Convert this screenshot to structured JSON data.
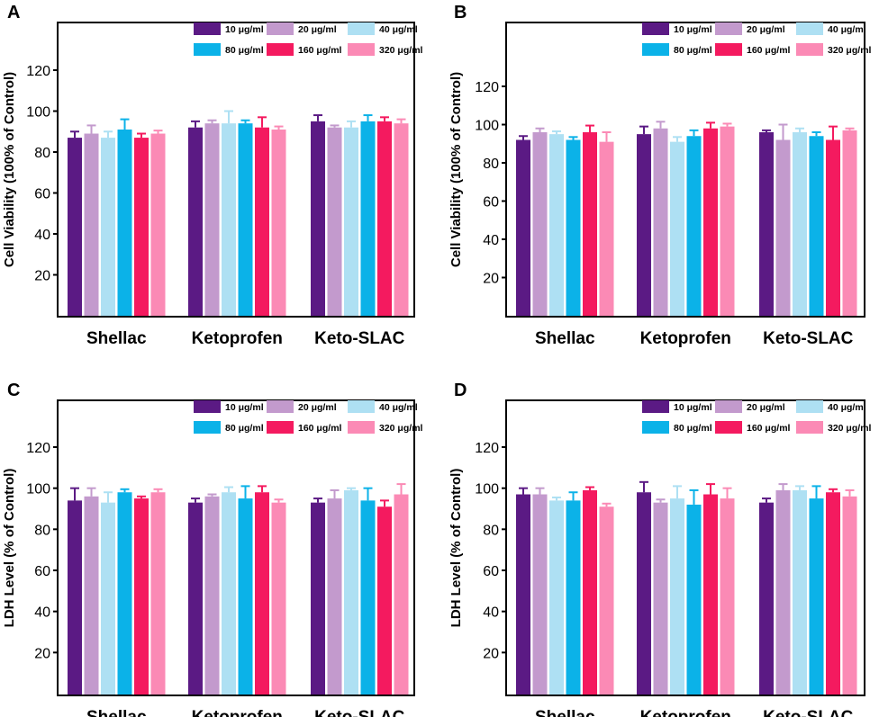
{
  "figure": {
    "legend_items": [
      {
        "label": "10 μg/ml",
        "color": "#5b1a84"
      },
      {
        "label": "20 μg/ml",
        "color": "#c39acd"
      },
      {
        "label": "40 μg/ml",
        "color": "#aee0f3"
      },
      {
        "label": "80 μg/ml",
        "color": "#0bb2e8"
      },
      {
        "label": "160 μg/ml",
        "color": "#f41a5f"
      },
      {
        "label": "320 μg/ml",
        "color": "#fb8ab5"
      }
    ]
  },
  "chart_data": [
    {
      "panel": "A",
      "type": "bar",
      "ylabel": "Cell Viability (100% of Control)",
      "ylim": [
        0,
        140
      ],
      "yticks": [
        20,
        40,
        60,
        80,
        100,
        120
      ],
      "categories": [
        "Shellac",
        "Ketoprofen",
        "Keto-SLAC"
      ],
      "series": [
        {
          "name": "10 μg/ml",
          "values": [
            87,
            92,
            95
          ],
          "errors": [
            3,
            3,
            3
          ]
        },
        {
          "name": "20 μg/ml",
          "values": [
            89,
            94,
            92
          ],
          "errors": [
            4,
            1.5,
            1
          ]
        },
        {
          "name": "40 μg/ml",
          "values": [
            87,
            94,
            92
          ],
          "errors": [
            3,
            6,
            3
          ]
        },
        {
          "name": "80 μg/ml",
          "values": [
            91,
            94,
            95
          ],
          "errors": [
            5,
            1.5,
            3
          ]
        },
        {
          "name": "160 μg/ml",
          "values": [
            87,
            92,
            95
          ],
          "errors": [
            2,
            5,
            2
          ]
        },
        {
          "name": "320 μg/ml",
          "values": [
            89,
            91,
            94
          ],
          "errors": [
            1.5,
            1.5,
            2
          ]
        }
      ]
    },
    {
      "panel": "B",
      "type": "bar",
      "ylabel": "Cell Viability (100% of Control)",
      "ylim": [
        0,
        140
      ],
      "yticks": [
        20,
        40,
        60,
        80,
        100,
        120
      ],
      "categories": [
        "Shellac",
        "Ketoprofen",
        "Keto-SLAC"
      ],
      "series": [
        {
          "name": "10 μg/ml",
          "values": [
            92,
            95,
            96
          ],
          "errors": [
            2,
            4,
            1
          ]
        },
        {
          "name": "20 μg/ml",
          "values": [
            96,
            98,
            92
          ],
          "errors": [
            2,
            3.5,
            8
          ]
        },
        {
          "name": "40 μg/ml",
          "values": [
            95,
            91,
            96
          ],
          "errors": [
            1.5,
            2.5,
            2
          ]
        },
        {
          "name": "80 μg/ml",
          "values": [
            92,
            94,
            94
          ],
          "errors": [
            1.5,
            3,
            2
          ]
        },
        {
          "name": "160 μg/ml",
          "values": [
            96,
            98,
            92
          ],
          "errors": [
            3.5,
            3,
            7
          ]
        },
        {
          "name": "320 μg/ml",
          "values": [
            91,
            99,
            97
          ],
          "errors": [
            5,
            1.5,
            1
          ]
        }
      ]
    },
    {
      "panel": "C",
      "type": "bar",
      "ylabel": "LDH Level (% of  Control)",
      "ylim": [
        0,
        140
      ],
      "yticks": [
        20,
        40,
        60,
        80,
        100,
        120
      ],
      "categories": [
        "Shellac",
        "Ketoprofen",
        "Keto-SLAC"
      ],
      "series": [
        {
          "name": "10 μg/ml",
          "values": [
            94,
            93,
            93
          ],
          "errors": [
            6,
            2,
            2
          ]
        },
        {
          "name": "20 μg/ml",
          "values": [
            96,
            96,
            95
          ],
          "errors": [
            4,
            1,
            4
          ]
        },
        {
          "name": "40 μg/ml",
          "values": [
            93,
            98,
            99
          ],
          "errors": [
            5,
            2.5,
            1
          ]
        },
        {
          "name": "80 μg/ml",
          "values": [
            98,
            95,
            94
          ],
          "errors": [
            1.5,
            6,
            6
          ]
        },
        {
          "name": "160 μg/ml",
          "values": [
            95,
            98,
            91
          ],
          "errors": [
            1,
            3,
            3
          ]
        },
        {
          "name": "320 μg/ml",
          "values": [
            98,
            93,
            97
          ],
          "errors": [
            1.5,
            1.5,
            5
          ]
        }
      ]
    },
    {
      "panel": "D",
      "type": "bar",
      "ylabel": "LDH Level (% of  Control)",
      "ylim": [
        0,
        140
      ],
      "yticks": [
        20,
        40,
        60,
        80,
        100,
        120
      ],
      "categories": [
        "Shellac",
        "Ketoprofen",
        "Keto-SLAC"
      ],
      "series": [
        {
          "name": "10 μg/ml",
          "values": [
            97,
            98,
            93
          ],
          "errors": [
            3,
            5,
            2
          ]
        },
        {
          "name": "20 μg/ml",
          "values": [
            97,
            93,
            99
          ],
          "errors": [
            3,
            1.5,
            3
          ]
        },
        {
          "name": "40 μg/ml",
          "values": [
            94,
            95,
            99
          ],
          "errors": [
            1.5,
            6,
            2
          ]
        },
        {
          "name": "80 μg/ml",
          "values": [
            94,
            92,
            95
          ],
          "errors": [
            4,
            7,
            6
          ]
        },
        {
          "name": "160 μg/ml",
          "values": [
            99,
            97,
            98
          ],
          "errors": [
            1.5,
            5,
            1.5
          ]
        },
        {
          "name": "320 μg/ml",
          "values": [
            91,
            95,
            96
          ],
          "errors": [
            1.5,
            5,
            3
          ]
        }
      ]
    }
  ]
}
